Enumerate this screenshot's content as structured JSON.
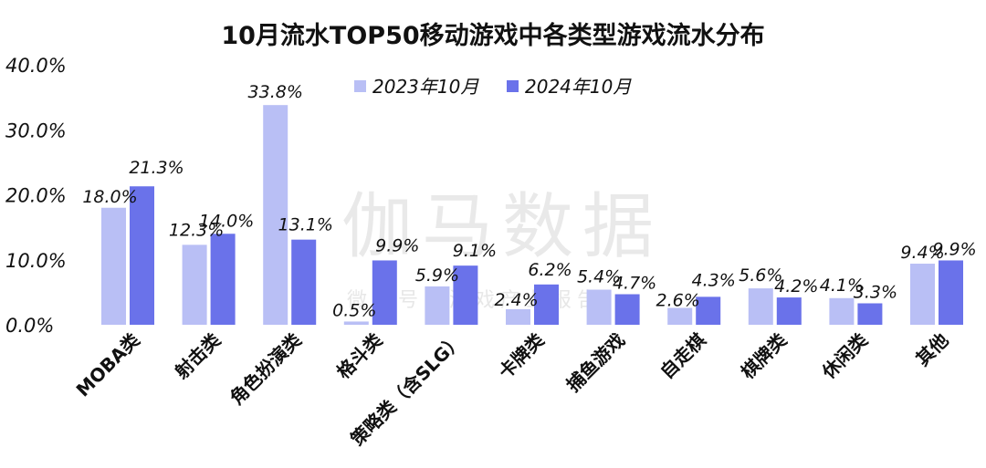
{
  "chart_data": {
    "type": "bar",
    "title": "10月流水TOP50移动游戏中各类型游戏流水分布",
    "categories": [
      "MOBA类",
      "射击类",
      "角色扮演类",
      "格斗类",
      "策略类（含SLG）",
      "卡牌类",
      "捕鱼游戏",
      "自走棋",
      "棋牌类",
      "休闲类",
      "其他"
    ],
    "series": [
      {
        "name": "2023年10月",
        "color": "#b9bff5",
        "values": [
          18.0,
          12.3,
          33.8,
          0.5,
          5.9,
          2.4,
          5.4,
          2.6,
          5.6,
          4.1,
          9.4
        ],
        "labels": [
          "18.0%",
          "12.3%",
          "33.8%",
          "0.5%",
          "5.9%",
          "2.4%",
          "5.4%",
          "2.6%",
          "5.6%",
          "4.1%",
          "9.4%"
        ]
      },
      {
        "name": "2024年10月",
        "color": "#6a72ea",
        "values": [
          21.3,
          14.0,
          13.1,
          9.9,
          9.1,
          6.2,
          4.7,
          4.3,
          4.2,
          3.3,
          9.9
        ],
        "labels": [
          "21.3%",
          "14.0%",
          "13.1%",
          "9.9%",
          "9.1%",
          "6.2%",
          "4.7%",
          "4.3%",
          "4.2%",
          "3.3%",
          "9.9%"
        ]
      }
    ],
    "yticks": [
      "0.0%",
      "10.0%",
      "20.0%",
      "30.0%",
      "40.0%"
    ],
    "ylim": [
      0,
      40
    ],
    "grid": false,
    "legend_position": "top-center"
  },
  "watermark": {
    "main": "伽马数据",
    "sub": "微信号：游戏产业报告"
  }
}
